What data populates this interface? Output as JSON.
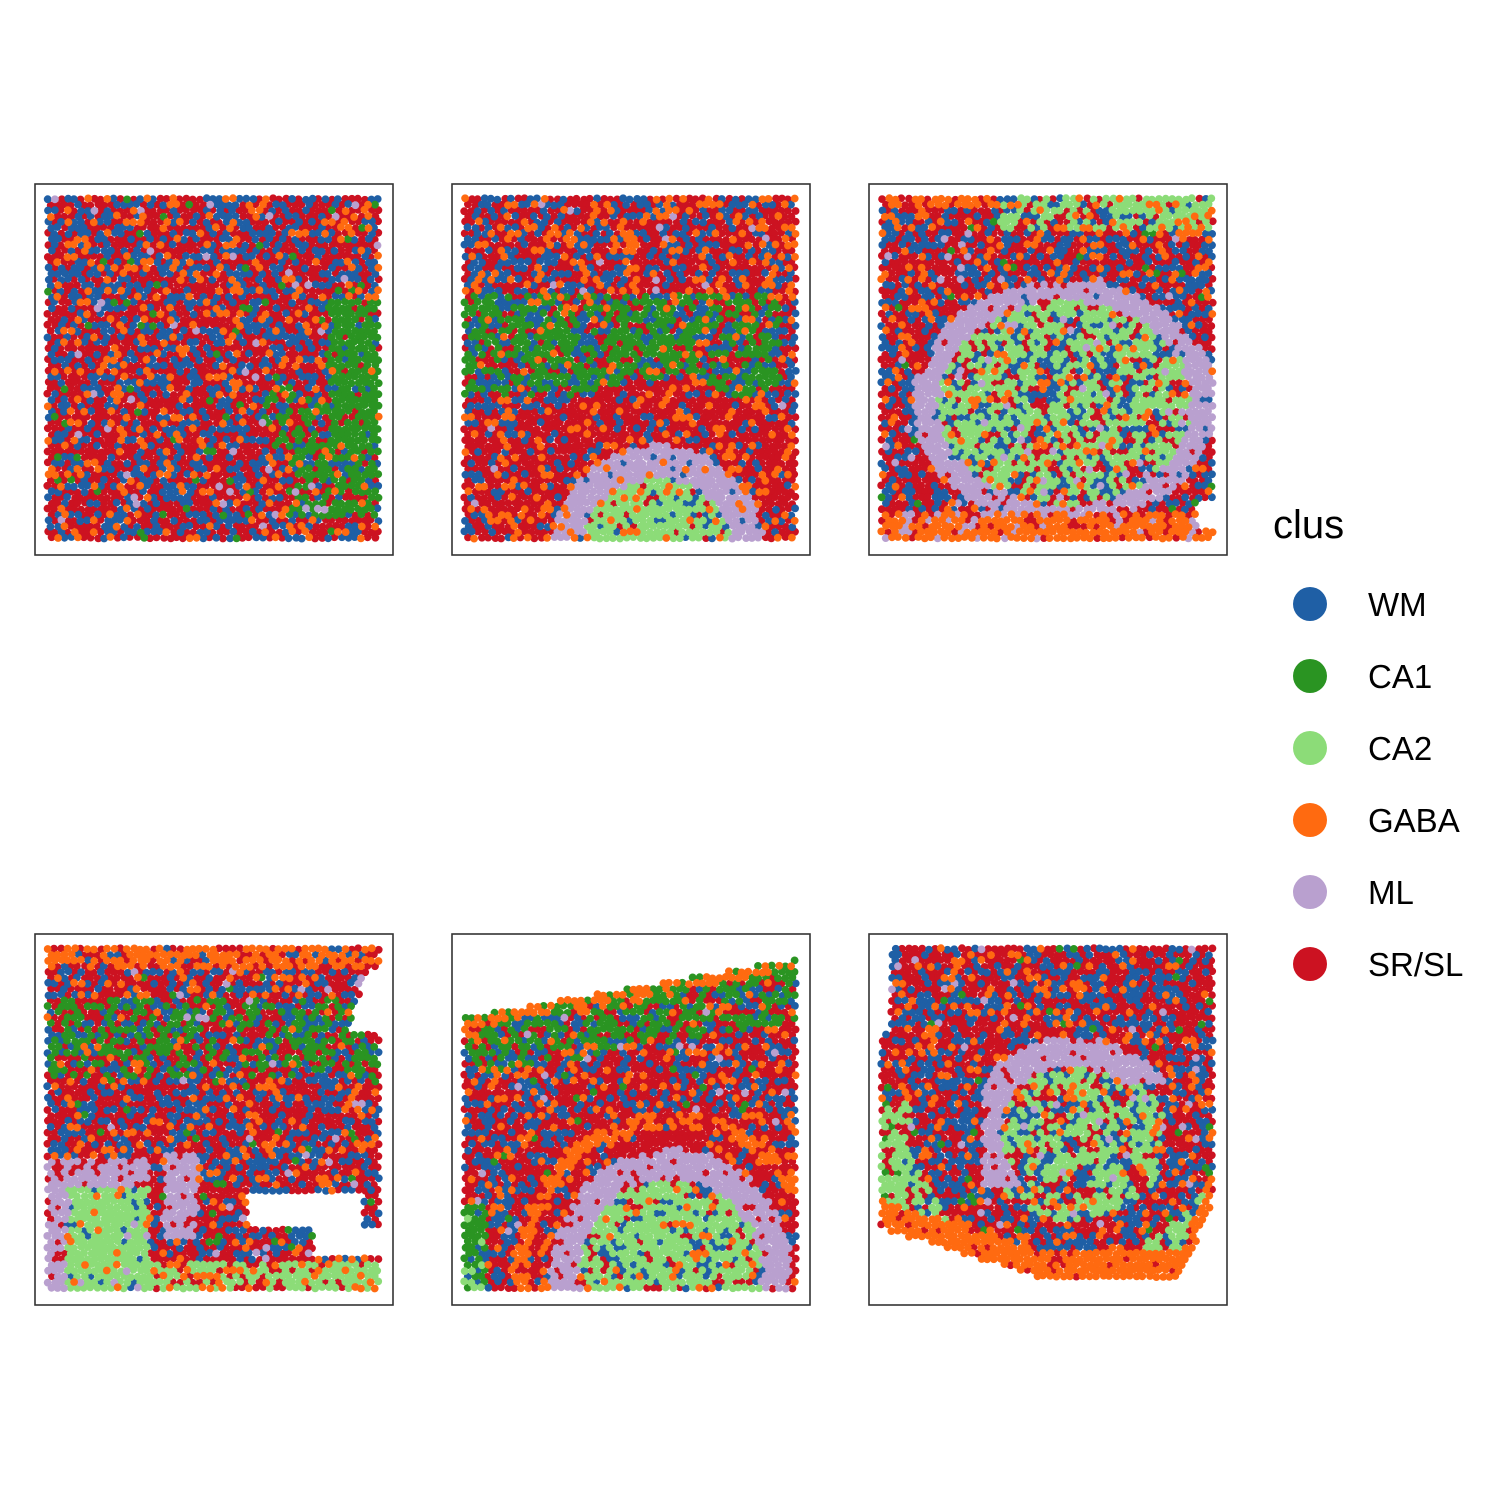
{
  "chart_data": {
    "type": "scatter",
    "description_kind": "spatial cluster maps (faceted)",
    "panels_layout": {
      "rows": 2,
      "cols": 3
    },
    "axes_visible": false,
    "grid": false,
    "legend": {
      "title": "clus",
      "placement": "right",
      "entries": [
        {
          "label": "WM",
          "color": "#1f5fa5"
        },
        {
          "label": "CA1",
          "color": "#2a9422"
        },
        {
          "label": "CA2",
          "color": "#8cdc78"
        },
        {
          "label": "GABA",
          "color": "#ff6a10"
        },
        {
          "label": "ML",
          "color": "#b9a0cf"
        },
        {
          "label": "SR/SL",
          "color": "#cc1221"
        }
      ]
    },
    "panels": [
      {
        "pattern": "mixed_with_ca1_right"
      },
      {
        "pattern": "band_with_arc_bottom"
      },
      {
        "pattern": "loop_center_ca2"
      },
      {
        "pattern": "layered_notch"
      },
      {
        "pattern": "curved_layers"
      },
      {
        "pattern": "spiral_layers"
      }
    ]
  }
}
